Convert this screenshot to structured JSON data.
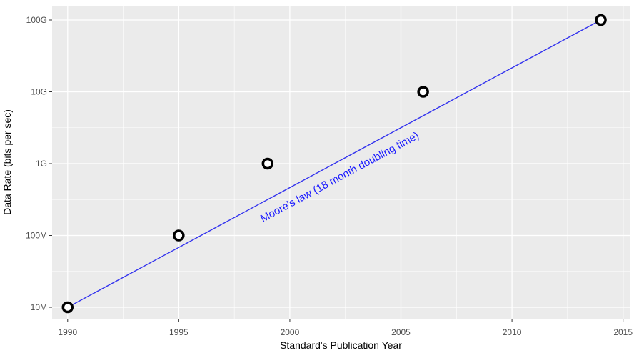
{
  "chart_data": {
    "type": "scatter",
    "xlabel": "Standard's Publication Year",
    "ylabel": "Data Rate (bits per sec)",
    "xlim": [
      1989.3,
      2015.3
    ],
    "ylim": [
      10000000.0,
      100000000000.0
    ],
    "y_scale": "log10",
    "grid": true,
    "x_ticks": [
      {
        "value": 1990,
        "label": "1990"
      },
      {
        "value": 1995,
        "label": "1995"
      },
      {
        "value": 2000,
        "label": "2000"
      },
      {
        "value": 2005,
        "label": "2005"
      },
      {
        "value": 2010,
        "label": "2010"
      },
      {
        "value": 2015,
        "label": "2015"
      }
    ],
    "y_ticks": [
      {
        "value": 10000000.0,
        "label": "10M"
      },
      {
        "value": 100000000.0,
        "label": "100M"
      },
      {
        "value": 1000000000.0,
        "label": "1G"
      },
      {
        "value": 10000000000.0,
        "label": "10G"
      },
      {
        "value": 100000000000.0,
        "label": "100G"
      }
    ],
    "points": [
      {
        "x": 1990,
        "y": 10000000.0
      },
      {
        "x": 1995,
        "y": 100000000.0
      },
      {
        "x": 1999,
        "y": 1000000000.0
      },
      {
        "x": 2006,
        "y": 10000000000.0
      },
      {
        "x": 2014,
        "y": 100000000000.0
      }
    ],
    "trend_line": {
      "label": "Moore's law (18 month doubling time)",
      "color": "#3333ee",
      "x": [
        1990,
        2014
      ],
      "y": [
        10000000.0,
        100000000000.0
      ]
    },
    "colors": {
      "panel_bg": "#ebebeb",
      "grid": "#ffffff",
      "point_stroke": "#000000",
      "point_fill": "#ffffff",
      "annotation": "#1a1aff"
    }
  }
}
